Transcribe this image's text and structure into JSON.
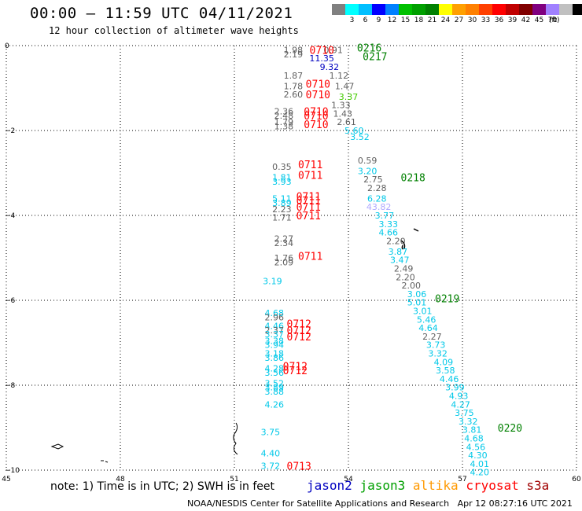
{
  "header": {
    "title": "00:00 — 11:59 UTC 04/11/2021",
    "subtitle": "12 hour collection of altimeter wave heights"
  },
  "colorbar": {
    "colors": [
      "#808080",
      "#00ffff",
      "#00bfff",
      "#0000ff",
      "#0080ff",
      "#00c000",
      "#00a000",
      "#008000",
      "#ffff00",
      "#ffa000",
      "#ff8000",
      "#ff4000",
      "#ff0000",
      "#c00000",
      "#800000",
      "#800080",
      "#a080ff",
      "#c0c0c0",
      "#000000"
    ],
    "labels": [
      "",
      "3",
      "6",
      "9",
      "12",
      "15",
      "18",
      "21",
      "24",
      "27",
      "30",
      "33",
      "36",
      "39",
      "42",
      "45",
      "70"
    ],
    "unit": "(ft)"
  },
  "footer": {
    "note": "note: 1) Time is in UTC; 2) SWH is in feet",
    "credit": "NOAA/NESDIS Center for Satellite Applications and Research   Apr 12 08:27:16 UTC 2021"
  },
  "legend": [
    {
      "name": "jason2",
      "color": "#0000c0"
    },
    {
      "name": "jason3",
      "color": "#00a000"
    },
    {
      "name": "altika",
      "color": "#ff9900"
    },
    {
      "name": "cryosat",
      "color": "#ff0000"
    },
    {
      "name": "s3a",
      "color": "#a00000"
    }
  ],
  "chart_data": {
    "type": "scatter",
    "title": "12 hour collection of altimeter wave heights",
    "xlim": [
      45,
      60
    ],
    "ylim": [
      -10,
      0
    ],
    "x_ticks": [
      {
        "v": 45,
        "t": "45"
      },
      {
        "v": 48,
        "t": "48"
      },
      {
        "v": 51,
        "t": "51"
      },
      {
        "v": 54,
        "t": "54"
      },
      {
        "v": 57,
        "t": "57"
      },
      {
        "v": 60,
        "t": "60"
      }
    ],
    "y_ticks": [
      {
        "v": 0,
        "t": "0"
      },
      {
        "v": -2,
        "t": "−2"
      },
      {
        "v": -4,
        "t": "−4"
      },
      {
        "v": -6,
        "t": "−6"
      },
      {
        "v": -8,
        "t": "−8"
      },
      {
        "v": -10,
        "t": "−10"
      }
    ],
    "grid": true,
    "colors": {
      "gray": "#606060",
      "cyan": "#00c8e8",
      "blue": "#0000c0",
      "green": "#00a000",
      "lightgreen": "#44cc00",
      "lavender": "#b0a8ff",
      "red": "#ff0000",
      "darkgreen": "#008000"
    },
    "points": [
      {
        "x": 52.55,
        "y": -0.1,
        "t": "1.98",
        "c": "gray"
      },
      {
        "x": 52.55,
        "y": -0.2,
        "t": "2.19",
        "c": "gray"
      },
      {
        "x": 53.6,
        "y": -0.1,
        "t": "0.91",
        "c": "gray"
      },
      {
        "x": 53.3,
        "y": -0.3,
        "t": "11.35",
        "c": "blue"
      },
      {
        "x": 53.5,
        "y": -0.5,
        "t": "9.32",
        "c": "blue"
      },
      {
        "x": 52.55,
        "y": -0.7,
        "t": "1.87",
        "c": "gray"
      },
      {
        "x": 53.75,
        "y": -0.7,
        "t": "1.12",
        "c": "gray"
      },
      {
        "x": 52.55,
        "y": -0.95,
        "t": "1.78",
        "c": "gray"
      },
      {
        "x": 53.9,
        "y": -0.95,
        "t": "1.47",
        "c": "gray"
      },
      {
        "x": 52.55,
        "y": -1.15,
        "t": "2.60",
        "c": "gray"
      },
      {
        "x": 54.0,
        "y": -1.2,
        "t": "3.37",
        "c": "lightgreen"
      },
      {
        "x": 53.8,
        "y": -1.4,
        "t": "1.33",
        "c": "gray"
      },
      {
        "x": 52.3,
        "y": -1.55,
        "t": "2.36",
        "c": "gray"
      },
      {
        "x": 52.3,
        "y": -1.65,
        "t": "2.48",
        "c": "gray"
      },
      {
        "x": 53.85,
        "y": -1.6,
        "t": "1.43",
        "c": "gray"
      },
      {
        "x": 52.3,
        "y": -1.8,
        "t": "1.79",
        "c": "gray"
      },
      {
        "x": 52.3,
        "y": -1.9,
        "t": "1.38",
        "c": "gray"
      },
      {
        "x": 53.95,
        "y": -1.8,
        "t": "2.61",
        "c": "gray"
      },
      {
        "x": 54.15,
        "y": -2.0,
        "t": "5.60",
        "c": "cyan"
      },
      {
        "x": 54.3,
        "y": -2.15,
        "t": "3.52",
        "c": "cyan"
      },
      {
        "x": 54.5,
        "y": -2.7,
        "t": "0.59",
        "c": "gray"
      },
      {
        "x": 52.25,
        "y": -2.85,
        "t": "0.35",
        "c": "gray"
      },
      {
        "x": 54.5,
        "y": -2.95,
        "t": "3.20",
        "c": "cyan"
      },
      {
        "x": 52.25,
        "y": -3.1,
        "t": "1.81",
        "c": "cyan"
      },
      {
        "x": 52.25,
        "y": -3.2,
        "t": "3.93",
        "c": "cyan"
      },
      {
        "x": 54.65,
        "y": -3.15,
        "t": "2.75",
        "c": "gray"
      },
      {
        "x": 54.75,
        "y": -3.35,
        "t": "2.28",
        "c": "gray"
      },
      {
        "x": 52.25,
        "y": -3.6,
        "t": "5.11",
        "c": "cyan"
      },
      {
        "x": 52.25,
        "y": -3.7,
        "t": "3.89",
        "c": "cyan"
      },
      {
        "x": 54.75,
        "y": -3.6,
        "t": "6.28",
        "c": "cyan"
      },
      {
        "x": 52.25,
        "y": -3.85,
        "t": "2.23",
        "c": "gray"
      },
      {
        "x": 54.8,
        "y": -3.8,
        "t": "43.82",
        "c": "lavender"
      },
      {
        "x": 52.25,
        "y": -4.05,
        "t": "1.71",
        "c": "gray"
      },
      {
        "x": 54.95,
        "y": -4.0,
        "t": "3.77",
        "c": "cyan"
      },
      {
        "x": 55.05,
        "y": -4.2,
        "t": "3.33",
        "c": "cyan"
      },
      {
        "x": 55.05,
        "y": -4.4,
        "t": "4.66",
        "c": "cyan"
      },
      {
        "x": 55.25,
        "y": -4.6,
        "t": "2.20",
        "c": "gray"
      },
      {
        "x": 52.3,
        "y": -4.55,
        "t": "2.27",
        "c": "gray"
      },
      {
        "x": 52.3,
        "y": -4.65,
        "t": "2.34",
        "c": "gray"
      },
      {
        "x": 55.3,
        "y": -4.85,
        "t": "3.87",
        "c": "cyan"
      },
      {
        "x": 52.3,
        "y": -5.0,
        "t": "1.76",
        "c": "gray"
      },
      {
        "x": 52.3,
        "y": -5.1,
        "t": "2.09",
        "c": "gray"
      },
      {
        "x": 55.35,
        "y": -5.05,
        "t": "3.47",
        "c": "cyan"
      },
      {
        "x": 55.45,
        "y": -5.25,
        "t": "2.49",
        "c": "gray"
      },
      {
        "x": 55.5,
        "y": -5.45,
        "t": "2.20",
        "c": "gray"
      },
      {
        "x": 52.0,
        "y": -5.55,
        "t": "3.19",
        "c": "cyan"
      },
      {
        "x": 55.65,
        "y": -5.65,
        "t": "2.00",
        "c": "gray"
      },
      {
        "x": 55.8,
        "y": -5.85,
        "t": "3.06",
        "c": "cyan"
      },
      {
        "x": 55.8,
        "y": -6.05,
        "t": "5.01",
        "c": "cyan"
      },
      {
        "x": 55.95,
        "y": -6.25,
        "t": "3.01",
        "c": "cyan"
      },
      {
        "x": 52.05,
        "y": -6.3,
        "t": "4.68",
        "c": "cyan"
      },
      {
        "x": 52.05,
        "y": -6.4,
        "t": "2.96",
        "c": "gray"
      },
      {
        "x": 56.05,
        "y": -6.45,
        "t": "5.46",
        "c": "cyan"
      },
      {
        "x": 52.05,
        "y": -6.6,
        "t": "4.46",
        "c": "cyan"
      },
      {
        "x": 56.1,
        "y": -6.65,
        "t": "4.64",
        "c": "cyan"
      },
      {
        "x": 52.05,
        "y": -6.7,
        "t": "2.37",
        "c": "gray"
      },
      {
        "x": 52.05,
        "y": -6.8,
        "t": "3.37",
        "c": "cyan"
      },
      {
        "x": 56.2,
        "y": -6.85,
        "t": "2.27",
        "c": "gray"
      },
      {
        "x": 52.05,
        "y": -6.95,
        "t": "3.38",
        "c": "cyan"
      },
      {
        "x": 52.05,
        "y": -7.05,
        "t": "3.94",
        "c": "cyan"
      },
      {
        "x": 56.3,
        "y": -7.05,
        "t": "3.73",
        "c": "cyan"
      },
      {
        "x": 52.05,
        "y": -7.25,
        "t": "3.18",
        "c": "cyan"
      },
      {
        "x": 52.05,
        "y": -7.35,
        "t": "3.86",
        "c": "cyan"
      },
      {
        "x": 56.35,
        "y": -7.25,
        "t": "3.32",
        "c": "cyan"
      },
      {
        "x": 56.5,
        "y": -7.45,
        "t": "4.09",
        "c": "cyan"
      },
      {
        "x": 52.05,
        "y": -7.6,
        "t": "4.28",
        "c": "cyan"
      },
      {
        "x": 52.05,
        "y": -7.7,
        "t": "3.56",
        "c": "cyan"
      },
      {
        "x": 56.55,
        "y": -7.65,
        "t": "3.58",
        "c": "cyan"
      },
      {
        "x": 56.65,
        "y": -7.85,
        "t": "4.46",
        "c": "cyan"
      },
      {
        "x": 52.05,
        "y": -7.95,
        "t": "3.52",
        "c": "cyan"
      },
      {
        "x": 52.05,
        "y": -8.05,
        "t": "3.89",
        "c": "cyan"
      },
      {
        "x": 52.05,
        "y": -8.15,
        "t": "3.88",
        "c": "cyan"
      },
      {
        "x": 56.8,
        "y": -8.05,
        "t": "3.99",
        "c": "cyan"
      },
      {
        "x": 56.9,
        "y": -8.25,
        "t": "4.93",
        "c": "cyan"
      },
      {
        "x": 52.05,
        "y": -8.45,
        "t": "4.26",
        "c": "cyan"
      },
      {
        "x": 56.95,
        "y": -8.45,
        "t": "4.27",
        "c": "cyan"
      },
      {
        "x": 57.05,
        "y": -8.65,
        "t": "3.75",
        "c": "cyan"
      },
      {
        "x": 57.15,
        "y": -8.85,
        "t": "3.32",
        "c": "cyan"
      },
      {
        "x": 57.25,
        "y": -9.05,
        "t": "3.81",
        "c": "cyan"
      },
      {
        "x": 51.95,
        "y": -9.1,
        "t": "3.75",
        "c": "cyan"
      },
      {
        "x": 57.3,
        "y": -9.25,
        "t": "4.68",
        "c": "cyan"
      },
      {
        "x": 57.35,
        "y": -9.45,
        "t": "4.56",
        "c": "cyan"
      },
      {
        "x": 51.95,
        "y": -9.6,
        "t": "4.40",
        "c": "cyan"
      },
      {
        "x": 57.4,
        "y": -9.65,
        "t": "4.30",
        "c": "cyan"
      },
      {
        "x": 57.45,
        "y": -9.85,
        "t": "4.01",
        "c": "cyan"
      },
      {
        "x": 51.95,
        "y": -9.9,
        "t": "3.72",
        "c": "cyan"
      },
      {
        "x": 57.45,
        "y": -10.05,
        "t": "4.20",
        "c": "cyan"
      }
    ],
    "time_labels": [
      {
        "x": 53.3,
        "y": -0.1,
        "t": "0710",
        "c": "red"
      },
      {
        "x": 54.55,
        "y": -0.05,
        "t": "0216",
        "c": "darkgreen"
      },
      {
        "x": 54.7,
        "y": -0.25,
        "t": "0217",
        "c": "darkgreen"
      },
      {
        "x": 53.2,
        "y": -0.9,
        "t": "0710",
        "c": "red"
      },
      {
        "x": 53.2,
        "y": -1.15,
        "t": "0710",
        "c": "red"
      },
      {
        "x": 53.15,
        "y": -1.55,
        "t": "0710",
        "c": "red"
      },
      {
        "x": 53.15,
        "y": -1.65,
        "t": "0710",
        "c": "red"
      },
      {
        "x": 53.15,
        "y": -1.85,
        "t": "0710",
        "c": "red"
      },
      {
        "x": 53.0,
        "y": -2.8,
        "t": "0711",
        "c": "red"
      },
      {
        "x": 53.0,
        "y": -3.05,
        "t": "0711",
        "c": "red"
      },
      {
        "x": 55.7,
        "y": -3.1,
        "t": "0218",
        "c": "darkgreen"
      },
      {
        "x": 52.95,
        "y": -3.55,
        "t": "0711",
        "c": "red"
      },
      {
        "x": 52.95,
        "y": -3.65,
        "t": "0711",
        "c": "red"
      },
      {
        "x": 52.95,
        "y": -3.8,
        "t": "0711",
        "c": "red"
      },
      {
        "x": 52.95,
        "y": -4.0,
        "t": "0711",
        "c": "red"
      },
      {
        "x": 53.0,
        "y": -4.95,
        "t": "0711",
        "c": "red"
      },
      {
        "x": 56.6,
        "y": -5.95,
        "t": "0219",
        "c": "darkgreen"
      },
      {
        "x": 52.7,
        "y": -6.55,
        "t": "0712",
        "c": "red"
      },
      {
        "x": 52.7,
        "y": -6.7,
        "t": "0712",
        "c": "red"
      },
      {
        "x": 52.7,
        "y": -6.85,
        "t": "0712",
        "c": "red"
      },
      {
        "x": 52.6,
        "y": -7.55,
        "t": "0712",
        "c": "red"
      },
      {
        "x": 52.6,
        "y": -7.65,
        "t": "0712",
        "c": "red"
      },
      {
        "x": 58.25,
        "y": -9.0,
        "t": "0220",
        "c": "darkgreen"
      },
      {
        "x": 52.7,
        "y": -9.9,
        "t": "0713",
        "c": "red"
      }
    ]
  }
}
